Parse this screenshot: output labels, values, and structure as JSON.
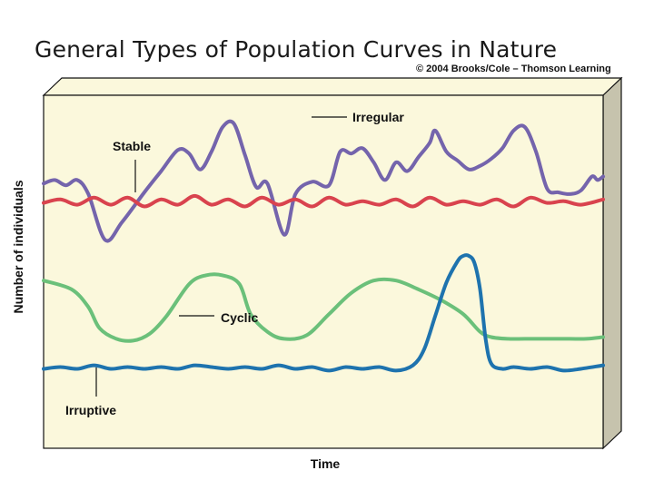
{
  "header": {
    "title": "General Types of Population Curves in Nature",
    "copyright": "© 2004 Brooks/Cole – Thomson Learning"
  },
  "chart_data": {
    "type": "line",
    "title": "General Types of Population Curves in Nature",
    "xlabel": "Time",
    "ylabel": "Number of individuals",
    "x_ticks": false,
    "y_ticks": false,
    "grid": false,
    "colors": {
      "panel": "#FBF8DC",
      "side": "#C6C3AD",
      "irregular": "#7464AC",
      "stable": "#D9434E",
      "cyclic": "#6BC07A",
      "irruptive": "#1E73AE"
    },
    "series": [
      {
        "name": "Irregular",
        "color_key": "irregular",
        "x": [
          0,
          2,
          4,
          6,
          8,
          11,
          14,
          18,
          21,
          24,
          26,
          28,
          30,
          32,
          34,
          36,
          38,
          40,
          43,
          45,
          48,
          51,
          53,
          55,
          57,
          59,
          61,
          63,
          65,
          67,
          69,
          70,
          72,
          74,
          76,
          78,
          80,
          82,
          84,
          86,
          88,
          90,
          92,
          94,
          96,
          98,
          99,
          100
        ],
        "y": [
          50,
          52,
          49,
          52,
          44,
          18,
          28,
          45,
          57,
          69,
          67,
          58,
          68,
          82,
          84,
          66,
          48,
          50,
          21,
          44,
          51,
          49,
          68,
          67,
          70,
          62,
          52,
          62,
          57,
          65,
          73,
          80,
          68,
          63,
          58,
          60,
          64,
          70,
          80,
          82,
          68,
          47,
          45,
          44,
          46,
          54,
          52,
          54
        ]
      },
      {
        "name": "Stable",
        "color_key": "stable",
        "x": [
          0,
          3,
          6,
          9,
          12,
          15,
          18,
          21,
          24,
          27,
          30,
          33,
          36,
          39,
          42,
          45,
          48,
          51,
          54,
          57,
          60,
          63,
          66,
          69,
          72,
          75,
          78,
          81,
          84,
          87,
          90,
          93,
          96,
          100
        ],
        "y": [
          39,
          41,
          38,
          42,
          38,
          42,
          37,
          41,
          38,
          43,
          38,
          41,
          37,
          42,
          38,
          41,
          37,
          42,
          38,
          40,
          38,
          41,
          37,
          42,
          38,
          40,
          38,
          41,
          37,
          42,
          39,
          40,
          38,
          41
        ]
      },
      {
        "name": "Cyclic",
        "color_key": "cyclic",
        "x": [
          0,
          5,
          8,
          10,
          13,
          16,
          19,
          22,
          26,
          29,
          32,
          35,
          37,
          40,
          43,
          47,
          51,
          55,
          59,
          63,
          67,
          71,
          75,
          78,
          80,
          83,
          86,
          90,
          94,
          97,
          100
        ],
        "y": [
          -5,
          -10,
          -20,
          -32,
          -38,
          -39,
          -35,
          -25,
          -7,
          -2,
          -2,
          -7,
          -24,
          -34,
          -38,
          -36,
          -24,
          -12,
          -5,
          -5,
          -10,
          -16,
          -24,
          -34,
          -37,
          -38,
          -38,
          -38,
          -38,
          -38,
          -37
        ]
      },
      {
        "name": "Irruptive",
        "color_key": "irruptive",
        "x": [
          0,
          3,
          6,
          9,
          12,
          15,
          18,
          21,
          24,
          27,
          30,
          33,
          36,
          39,
          42,
          45,
          48,
          51,
          54,
          57,
          60,
          63,
          66,
          68,
          70,
          72,
          74,
          75,
          76,
          77,
          78,
          79,
          80,
          82,
          84,
          87,
          90,
          93,
          96,
          100
        ],
        "y": [
          -55,
          -54,
          -55,
          -53,
          -55,
          -54,
          -55,
          -54,
          -55,
          -53,
          -54,
          -55,
          -54,
          -55,
          -53,
          -55,
          -54,
          -56,
          -54,
          -55,
          -54,
          -56,
          -53,
          -44,
          -25,
          -6,
          6,
          9,
          9,
          5,
          -10,
          -38,
          -52,
          -55,
          -54,
          -55,
          -54,
          -56,
          -55,
          -53
        ]
      }
    ],
    "annotations": [
      {
        "text": "Irregular",
        "series": "Irregular"
      },
      {
        "text": "Stable",
        "series": "Stable"
      },
      {
        "text": "Cyclic",
        "series": "Cyclic"
      },
      {
        "text": "Irruptive",
        "series": "Irruptive"
      }
    ]
  }
}
